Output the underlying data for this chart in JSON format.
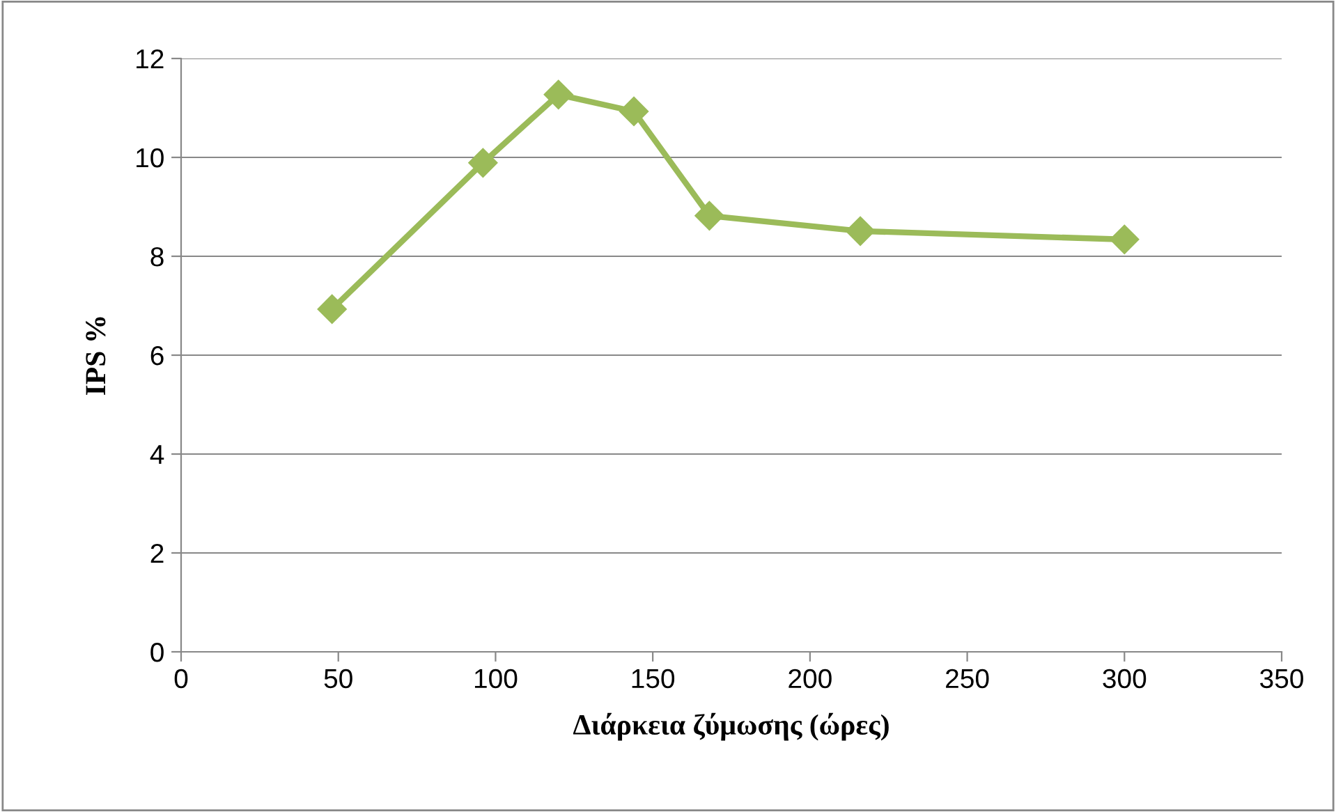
{
  "chart_data": {
    "type": "line",
    "xlabel": "Διάρκεια ζύμωσης (ώρες)",
    "ylabel": "IPS %",
    "x": [
      48,
      96,
      120,
      144,
      168,
      216,
      300
    ],
    "series": [
      {
        "color": "#9bbb59",
        "values": [
          6.93,
          9.89,
          11.27,
          10.93,
          8.82,
          8.51,
          8.34
        ]
      }
    ],
    "xlim": [
      0,
      350
    ],
    "xticks": [
      0,
      50,
      100,
      150,
      200,
      250,
      300,
      350
    ],
    "ylim": [
      0,
      12
    ],
    "yticks": [
      0,
      2,
      4,
      6,
      8,
      10,
      12
    ],
    "grid": "y",
    "marker": "diamond",
    "line_style": "solid",
    "legend": false
  }
}
